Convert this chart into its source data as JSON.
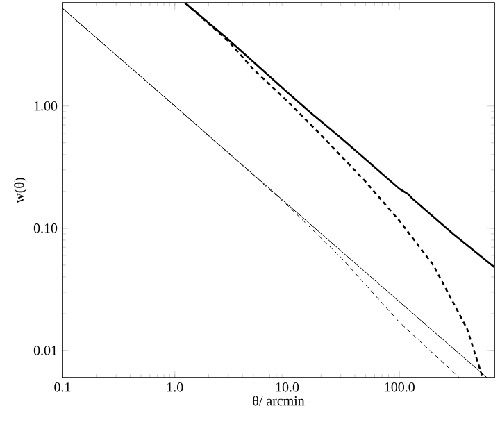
{
  "chart_data": {
    "type": "line",
    "xlabel": "θ/ arcmin",
    "ylabel": "w(θ)",
    "log": "xy",
    "marker": "none",
    "xlim": [
      0.1,
      700
    ],
    "ylim": [
      0.006,
      7
    ],
    "xticks": [
      {
        "value": 0.1,
        "label": "0.1"
      },
      {
        "value": 1,
        "label": "1.0"
      },
      {
        "value": 10,
        "label": "10.0"
      },
      {
        "value": 100,
        "label": "100.0"
      }
    ],
    "yticks": [
      {
        "value": 0.01,
        "label": "0.01"
      },
      {
        "value": 0.1,
        "label": "0.10"
      },
      {
        "value": 1,
        "label": "1.00"
      }
    ],
    "series": [
      {
        "color": "#000000",
        "line_style": "solid",
        "x": [
          1.23,
          3,
          10,
          16,
          30,
          100,
          120,
          130,
          300,
          700
        ],
        "values": [
          7,
          3.5,
          1.3,
          0.89,
          0.55,
          0.21,
          0.19,
          0.175,
          0.09,
          0.048
        ]
      },
      {
        "color": "#000000",
        "line_style": "dashed",
        "x": [
          1.23,
          3,
          5,
          10,
          20,
          50,
          100,
          200,
          400,
          550
        ],
        "values": [
          7,
          3.4,
          2.0,
          1.1,
          0.58,
          0.24,
          0.115,
          0.05,
          0.015,
          0.006
        ]
      },
      {
        "color": "#000000",
        "line_style": "solid",
        "x": [
          0.1,
          1,
          10,
          100,
          600
        ],
        "values": [
          6.3,
          1.0,
          0.158,
          0.025,
          0.006
        ]
      },
      {
        "color": "#000000",
        "line_style": "dashed",
        "x": [
          0.1,
          1,
          10,
          30,
          100,
          340
        ],
        "values": [
          6.3,
          1.0,
          0.155,
          0.058,
          0.017,
          0.006
        ]
      }
    ]
  }
}
